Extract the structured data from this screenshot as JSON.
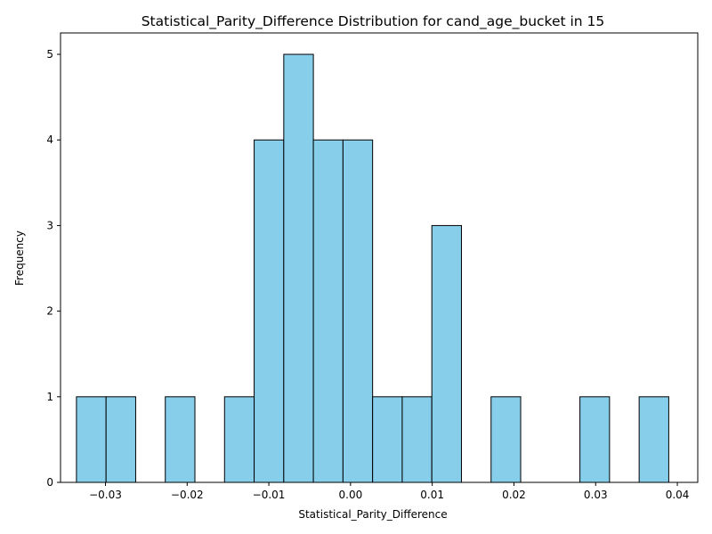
{
  "chart_data": {
    "type": "bar",
    "title": "Statistical_Parity_Difference Distribution for cand_age_bucket in 15",
    "xlabel": "Statistical_Parity_Difference",
    "ylabel": "Frequency",
    "xlim": [
      -0.0355,
      0.0425
    ],
    "ylim": [
      0,
      5.25
    ],
    "x_ticks": [
      -0.03,
      -0.02,
      -0.01,
      0.0,
      0.01,
      0.02,
      0.03,
      0.04
    ],
    "x_tick_labels": [
      "−0.03",
      "−0.02",
      "−0.01",
      "0.00",
      "0.01",
      "0.02",
      "0.03",
      "0.04"
    ],
    "y_ticks": [
      0,
      1,
      2,
      3,
      4,
      5
    ],
    "y_tick_labels": [
      "0",
      "1",
      "2",
      "3",
      "4",
      "5"
    ],
    "bin_start": -0.03355,
    "bin_width": 0.003625,
    "values": [
      1,
      1,
      0,
      1,
      0,
      1,
      4,
      5,
      4,
      4,
      1,
      1,
      3,
      0,
      1,
      0,
      0,
      1,
      0,
      1
    ],
    "bar_color": "#87ceeb",
    "edge_color": "#000000",
    "grid": false,
    "legend": "none"
  }
}
